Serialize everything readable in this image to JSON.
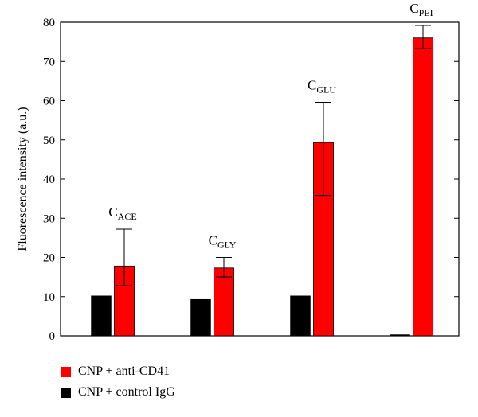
{
  "chart_data": {
    "type": "bar",
    "title": "",
    "xlabel": "",
    "ylabel": "Fluorescence intensity (a.u.)",
    "ylim": [
      0,
      80
    ],
    "yticks": [
      0,
      10,
      20,
      30,
      40,
      50,
      60,
      70,
      80
    ],
    "categories": [
      {
        "main": "C",
        "sub": "ACE"
      },
      {
        "main": "C",
        "sub": "GLY"
      },
      {
        "main": "C",
        "sub": "GLU"
      },
      {
        "main": "C",
        "sub": "PEI"
      }
    ],
    "series": [
      {
        "name": "CNP + control IgG",
        "color": "#000000",
        "values": [
          10.2,
          9.3,
          10.2,
          0.3
        ],
        "errors": [
          null,
          null,
          null,
          null
        ]
      },
      {
        "name": "CNP + anti-CD41",
        "color": "#ff0000",
        "values": [
          17.8,
          17.3,
          49.3,
          76.0
        ],
        "errors": [
          [
            12.8,
            27.2
          ],
          [
            15.0,
            20.0
          ],
          [
            35.8,
            59.6
          ],
          [
            73.3,
            79.2
          ]
        ]
      }
    ],
    "legend_order": [
      1,
      0
    ],
    "legend_position": "bottom-left",
    "grid": false
  }
}
